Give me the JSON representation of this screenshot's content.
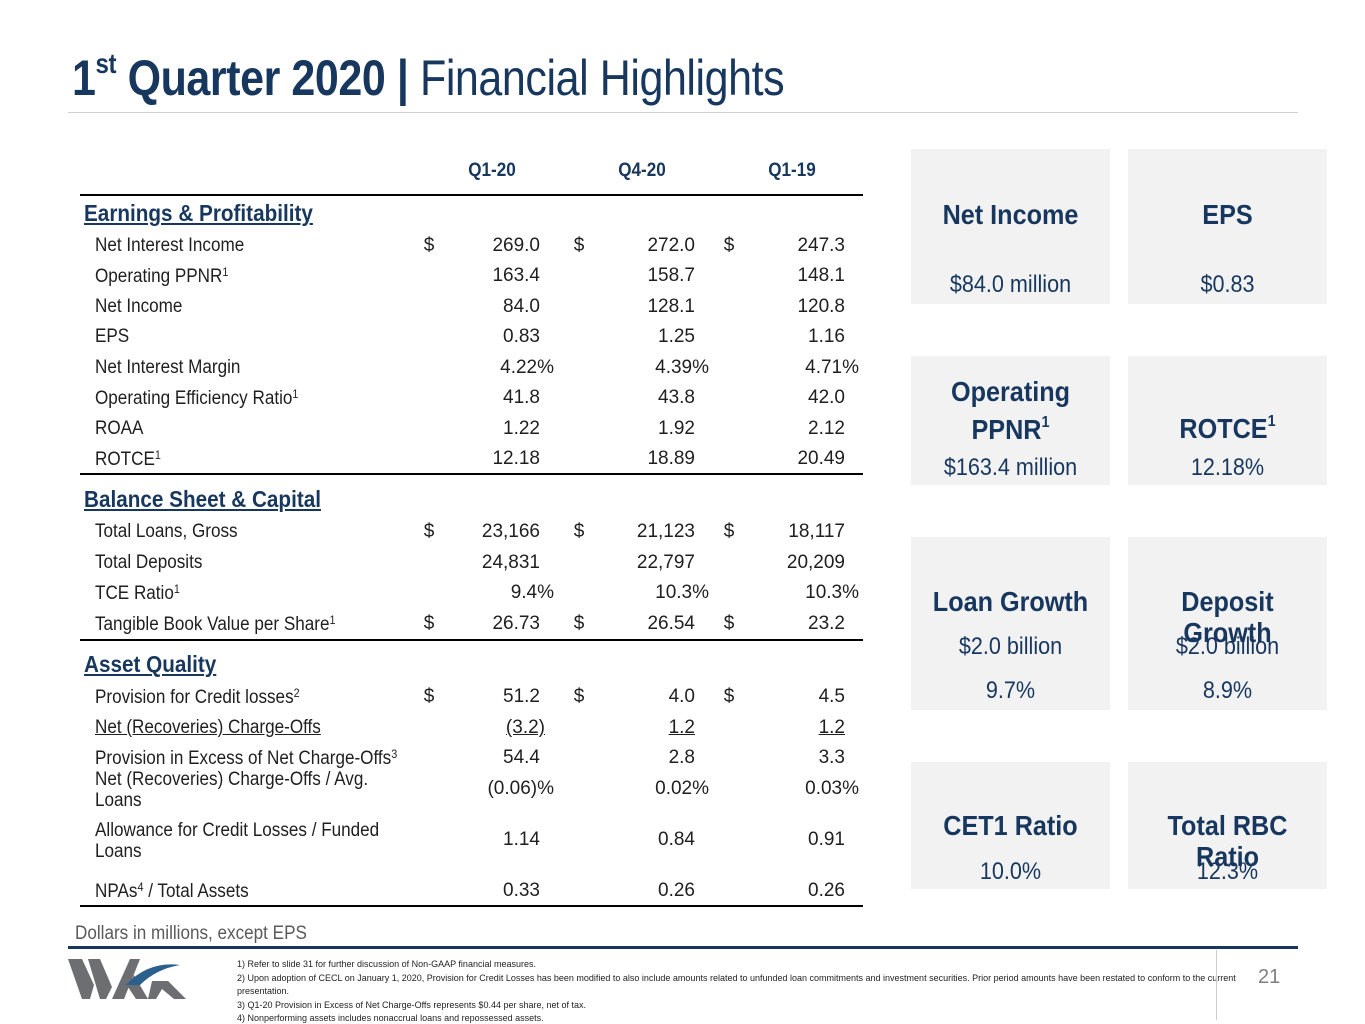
{
  "title": {
    "quarter_num": "1",
    "quarter_sup": "st",
    "quarter_rest": " Quarter 2020 | ",
    "subtitle": "Financial Highlights"
  },
  "table": {
    "columns": [
      "Q1-20",
      "Q4-20",
      "Q1-19"
    ],
    "sections": {
      "earnings": "Earnings & Profitability",
      "balance": "Balance Sheet & Capital",
      "asset": "Asset Quality"
    },
    "rows": [
      {
        "label": "Net Interest Income",
        "sup": "",
        "dollar": "$",
        "v1": "269.0",
        "v2": "272.0",
        "v3": "247.3"
      },
      {
        "label": "Operating PPNR",
        "sup": "1",
        "dollar": "",
        "v1": "163.4",
        "v2": "158.7",
        "v3": "148.1"
      },
      {
        "label": "Net Income",
        "sup": "",
        "dollar": "",
        "v1": "84.0",
        "v2": "128.1",
        "v3": "120.8"
      },
      {
        "label": "EPS",
        "sup": "",
        "dollar": "",
        "v1": "0.83",
        "v2": "1.25",
        "v3": "1.16"
      },
      {
        "label": "Net Interest Margin",
        "sup": "",
        "dollar": "",
        "v1": "4.22%",
        "v2": "4.39%",
        "v3": "4.71%"
      },
      {
        "label": "Operating Efficiency Ratio",
        "sup": "1",
        "dollar": "",
        "v1": "41.8",
        "v2": "43.8",
        "v3": "42.0"
      },
      {
        "label": "ROAA",
        "sup": "",
        "dollar": "",
        "v1": "1.22",
        "v2": "1.92",
        "v3": "2.12"
      },
      {
        "label": "ROTCE",
        "sup": "1",
        "dollar": "",
        "v1": "12.18",
        "v2": "18.89",
        "v3": "20.49"
      },
      {
        "label": "Total Loans, Gross",
        "sup": "",
        "dollar": "$",
        "v1": "23,166",
        "v2": "21,123",
        "v3": "18,117"
      },
      {
        "label": "Total Deposits",
        "sup": "",
        "dollar": "",
        "v1": "24,831",
        "v2": "22,797",
        "v3": "20,209"
      },
      {
        "label": "TCE Ratio",
        "sup": "1",
        "dollar": "",
        "v1": "9.4%",
        "v2": "10.3%",
        "v3": "10.3%"
      },
      {
        "label": "Tangible Book Value per Share",
        "sup": "1",
        "dollar": "$",
        "v1": "26.73",
        "v2": "26.54",
        "v3": "23.2"
      },
      {
        "label": "Provision for Credit losses",
        "sup": "2",
        "dollar": "$",
        "v1": "51.2",
        "v2": "4.0",
        "v3": "4.5"
      },
      {
        "label": "Net (Recoveries) Charge-Offs",
        "sup": "",
        "dollar": "",
        "v1": "(3.2)",
        "v2": "1.2",
        "v3": "1.2"
      },
      {
        "label": "Provision in Excess of Net Charge-Offs",
        "sup": "3",
        "dollar": "",
        "v1": "54.4",
        "v2": "2.8",
        "v3": "3.3"
      },
      {
        "label_line1": "Net (Recoveries) Charge-Offs / Avg.",
        "label_line2": "Loans",
        "v1": "(0.06)%",
        "v2": "0.02%",
        "v3": "0.03%"
      },
      {
        "label_line1": "Allowance for Credit Losses / Funded",
        "label_line2": "Loans",
        "v1": "1.14",
        "v2": "0.84",
        "v3": "0.91"
      },
      {
        "label": "NPAs",
        "sup": "4",
        "label_tail": " / Total Assets",
        "dollar": "",
        "v1": "0.33",
        "v2": "0.26",
        "v3": "0.26"
      }
    ]
  },
  "cards": {
    "net_income": {
      "title": "Net Income",
      "value": "$84.0 million"
    },
    "eps": {
      "title": "EPS",
      "value": "$0.83"
    },
    "ppnr": {
      "title_line1": "Operating",
      "title_line2": "PPNR",
      "sup": "1",
      "value": "$163.4 million"
    },
    "rotce": {
      "title": "ROTCE",
      "sup": "1",
      "value": "12.18%"
    },
    "loan": {
      "title": "Loan Growth",
      "value1": "$2.0 billion",
      "value2": "9.7%"
    },
    "deposit": {
      "title": "Deposit Growth",
      "value1": "$2.0 billion",
      "value2": "8.9%"
    },
    "cet1": {
      "title": "CET1 Ratio",
      "value": "10.0%"
    },
    "rbc": {
      "title": "Total RBC Ratio",
      "value": "12.3%"
    }
  },
  "footer": {
    "unit_note": "Dollars in millions, except EPS",
    "notes": [
      "1) Refer to slide 31 for further discussion of Non-GAAP financial measures.",
      "2) Upon adoption of CECL on January 1, 2020, Provision for Credit Losses has been modified to also include amounts related to unfunded loan commitments and investment securities. Prior period amounts have been restated to conform to the current presentation.",
      "3) Q1-20 Provision in Excess of Net Charge-Offs represents $0.44 per share, net of tax.",
      "4) Nonperforming assets includes nonaccrual loans and repossessed assets."
    ],
    "page_number": "21"
  },
  "colors": {
    "brand_navy": "#17375e",
    "card_bg": "#f2f2f2",
    "logo_gray": "#6d6e71",
    "logo_blue": "#2b5f8c"
  }
}
